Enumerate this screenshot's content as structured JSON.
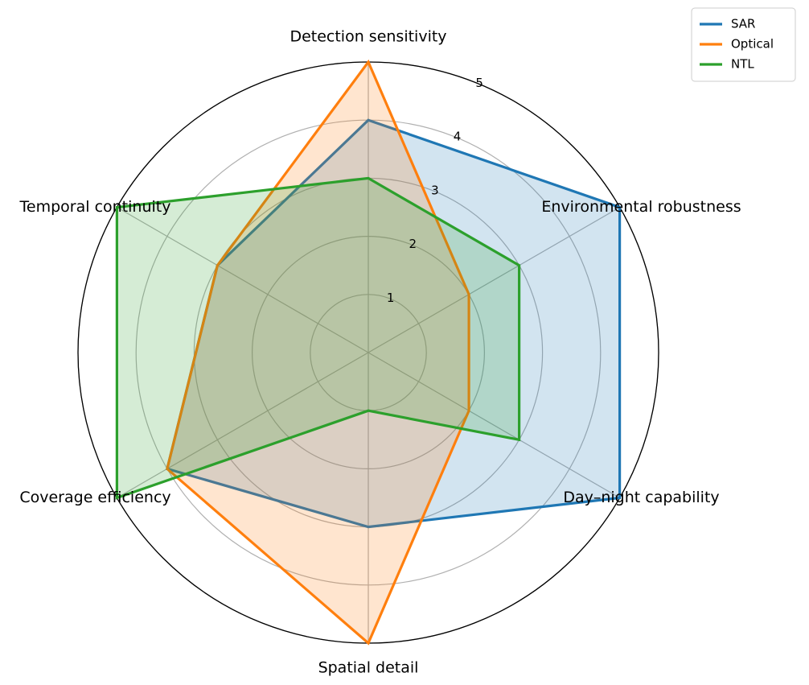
{
  "chart_data": {
    "type": "radar",
    "axes": [
      "Detection sensitivity",
      "Environmental robustness",
      "Day–night capability",
      "Spatial detail",
      "Coverage efficiency",
      "Temporal continuity"
    ],
    "r_ticks": [
      "1",
      "2",
      "3",
      "4",
      "5"
    ],
    "rlim": [
      0,
      5
    ],
    "grid": true,
    "legend": "top-right",
    "series": [
      {
        "name": "SAR",
        "color": "#1f77b4",
        "values": [
          4,
          5,
          5,
          3,
          4,
          3
        ]
      },
      {
        "name": "Optical",
        "color": "#ff7f0e",
        "values": [
          5,
          2,
          2,
          5,
          4,
          3
        ]
      },
      {
        "name": "NTL",
        "color": "#2ca02c",
        "values": [
          3,
          3,
          3,
          1,
          5,
          5
        ]
      }
    ]
  }
}
